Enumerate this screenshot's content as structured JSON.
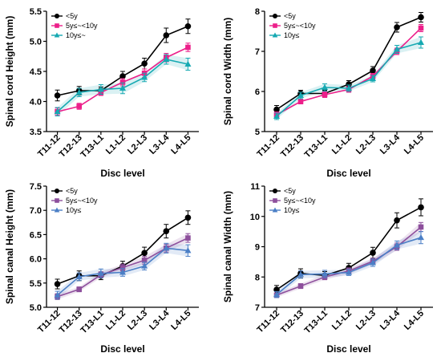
{
  "colors": {
    "lt5y": "#000000",
    "mid_pink": "#ec1f8a",
    "mid_purple": "#8d4f9c",
    "ge10y_teal": "#16a9b2",
    "ge10y_blue": "#4b7fc6"
  },
  "chart_data": [
    {
      "type": "line",
      "ylabel": "Spinal cord Height (mm)",
      "xlabel": "Disc level",
      "categories": [
        "T11-12",
        "T12-13",
        "T13-L1",
        "L1-L2",
        "L2-L3",
        "L3-L4",
        "L4-L5"
      ],
      "ylim": [
        3.5,
        5.5
      ],
      "yticks": [
        3.5,
        4.0,
        4.5,
        5.0,
        5.5
      ],
      "ytick_labels": [
        "3.5",
        "4.0",
        "4.5",
        "5.0",
        "5.5"
      ],
      "legend_position": "top-left",
      "series": [
        {
          "name": "<5y",
          "color": "#000000",
          "marker": "circle",
          "values": [
            4.1,
            4.18,
            4.18,
            4.42,
            4.63,
            5.1,
            5.25
          ],
          "errors": [
            0.09,
            0.07,
            0.06,
            0.08,
            0.09,
            0.12,
            0.12
          ]
        },
        {
          "name": "5y≤~<10y",
          "color": "#ec1f8a",
          "marker": "square",
          "values": [
            3.83,
            3.92,
            4.15,
            4.32,
            4.47,
            4.73,
            4.9
          ],
          "errors": [
            0.06,
            0.05,
            0.05,
            0.06,
            0.07,
            0.07,
            0.07
          ]
        },
        {
          "name": "10y≤~",
          "color": "#16a9b2",
          "marker": "triangle",
          "values": [
            3.83,
            4.15,
            4.2,
            4.22,
            4.4,
            4.7,
            4.62
          ],
          "errors": [
            0.07,
            0.07,
            0.08,
            0.09,
            0.07,
            0.08,
            0.1
          ],
          "band": true
        }
      ]
    },
    {
      "type": "line",
      "ylabel": "Spinal cord Width (mm)",
      "xlabel": "Disc level",
      "categories": [
        "T11-12",
        "T12-13",
        "T13-L1",
        "L1-L2",
        "L2-L3",
        "L3-L4",
        "L4-L5"
      ],
      "ylim": [
        5,
        8
      ],
      "yticks": [
        5,
        6,
        7,
        8
      ],
      "ytick_labels": [
        "5",
        "6",
        "7",
        "8"
      ],
      "legend_position": "top-left",
      "series": [
        {
          "name": "<5y",
          "color": "#000000",
          "marker": "circle",
          "values": [
            5.55,
            5.95,
            5.95,
            6.18,
            6.52,
            7.6,
            7.85
          ],
          "errors": [
            0.1,
            0.08,
            0.08,
            0.09,
            0.1,
            0.12,
            0.12
          ]
        },
        {
          "name": "5y≤~<10y",
          "color": "#ec1f8a",
          "marker": "square",
          "values": [
            5.42,
            5.75,
            5.92,
            6.05,
            6.38,
            7.0,
            7.58
          ],
          "errors": [
            0.07,
            0.06,
            0.07,
            0.07,
            0.07,
            0.08,
            0.09
          ]
        },
        {
          "name": "10y≤",
          "color": "#16a9b2",
          "marker": "triangle",
          "values": [
            5.38,
            5.9,
            6.1,
            6.08,
            6.32,
            7.05,
            7.22
          ],
          "errors": [
            0.08,
            0.08,
            0.09,
            0.08,
            0.08,
            0.1,
            0.14
          ],
          "band": true
        }
      ]
    },
    {
      "type": "line",
      "ylabel": "Spinal canal Height (mm)",
      "xlabel": "Disc level",
      "categories": [
        "T11-12",
        "T12-13",
        "T13-L1",
        "L1-L2",
        "L2-L3",
        "L3-L4",
        "L4-L5"
      ],
      "ylim": [
        5.0,
        7.5
      ],
      "yticks": [
        5.0,
        5.5,
        6.0,
        6.5,
        7.0,
        7.5
      ],
      "ytick_labels": [
        "5.0",
        "5.5",
        "6.0",
        "6.5",
        "7.0",
        "7.5"
      ],
      "legend_position": "top-left",
      "series": [
        {
          "name": "<5y",
          "color": "#000000",
          "marker": "circle",
          "values": [
            5.48,
            5.65,
            5.65,
            5.85,
            6.12,
            6.57,
            6.85
          ],
          "errors": [
            0.1,
            0.1,
            0.08,
            0.1,
            0.12,
            0.14,
            0.14
          ]
        },
        {
          "name": "5y≤~<10y",
          "color": "#8d4f9c",
          "marker": "square",
          "values": [
            5.22,
            5.37,
            5.67,
            5.82,
            5.97,
            6.22,
            6.43
          ],
          "errors": [
            0.06,
            0.05,
            0.06,
            0.07,
            0.08,
            0.08,
            0.09
          ],
          "band": true
        },
        {
          "name": "10y≤",
          "color": "#4b7fc6",
          "marker": "triangle",
          "values": [
            5.25,
            5.63,
            5.7,
            5.72,
            5.85,
            6.22,
            6.17
          ],
          "errors": [
            0.08,
            0.08,
            0.09,
            0.08,
            0.08,
            0.1,
            0.12
          ],
          "band": true
        }
      ]
    },
    {
      "type": "line",
      "ylabel": "Spinal canal Width (mm)",
      "xlabel": "Disc level",
      "categories": [
        "T11-12",
        "T12-13",
        "T13-L1",
        "L1-L2",
        "L2-L3",
        "L3-L4",
        "L4-L5"
      ],
      "ylim": [
        7,
        11
      ],
      "yticks": [
        7,
        8,
        9,
        10,
        11
      ],
      "ytick_labels": [
        "7",
        "8",
        "9",
        "10",
        "11"
      ],
      "legend_position": "top-left",
      "series": [
        {
          "name": "<5y",
          "color": "#000000",
          "marker": "circle",
          "values": [
            7.58,
            8.12,
            8.05,
            8.3,
            8.8,
            9.87,
            10.3
          ],
          "errors": [
            0.14,
            0.15,
            0.13,
            0.15,
            0.18,
            0.25,
            0.28
          ]
        },
        {
          "name": "5y≤~<10y",
          "color": "#8d4f9c",
          "marker": "square",
          "values": [
            7.4,
            7.7,
            8.0,
            8.2,
            8.52,
            9.0,
            9.65
          ],
          "errors": [
            0.08,
            0.08,
            0.09,
            0.1,
            0.1,
            0.12,
            0.15
          ],
          "band": true
        },
        {
          "name": "10y≤",
          "color": "#4b7fc6",
          "marker": "triangle",
          "values": [
            7.42,
            8.08,
            8.1,
            8.15,
            8.47,
            9.05,
            9.3
          ],
          "errors": [
            0.1,
            0.12,
            0.12,
            0.1,
            0.12,
            0.14,
            0.2
          ],
          "band": true
        }
      ]
    }
  ]
}
